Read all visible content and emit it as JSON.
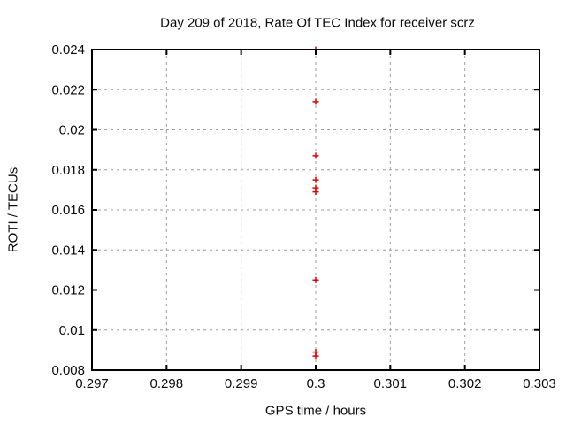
{
  "chart_data": {
    "type": "scatter",
    "title": "Day 209 of 2018, Rate Of TEC Index for receiver scrz",
    "xlabel": "GPS time / hours",
    "ylabel": "ROTI / TECUs",
    "xlim": [
      0.297,
      0.303
    ],
    "ylim": [
      0.008,
      0.024
    ],
    "xticks": [
      0.297,
      0.298,
      0.299,
      0.3,
      0.301,
      0.302,
      0.303
    ],
    "xtick_labels": [
      "0.297",
      "0.298",
      "0.299",
      "0.3",
      "0.301",
      "0.302",
      "0.303"
    ],
    "yticks": [
      0.008,
      0.01,
      0.012,
      0.014,
      0.016,
      0.018,
      0.02,
      0.022,
      0.024
    ],
    "ytick_labels": [
      "0.008",
      "0.01",
      "0.012",
      "0.014",
      "0.016",
      "0.018",
      "0.02",
      "0.022",
      "0.024"
    ],
    "grid": true,
    "legend_position": "none",
    "marker": {
      "shape": "plus",
      "color": "#e00000",
      "size": 7,
      "stroke_width": 1.5
    },
    "colors": {
      "axis": "#000000",
      "grid": "#9e9e9e",
      "background": "#ffffff"
    },
    "series": [
      {
        "name": "ROTI",
        "x": [
          0.3,
          0.3,
          0.3,
          0.3,
          0.3,
          0.3,
          0.3,
          0.3,
          0.3
        ],
        "y": [
          0.024,
          0.0214,
          0.0187,
          0.0175,
          0.0171,
          0.0169,
          0.0125,
          0.0089,
          0.0087
        ]
      }
    ]
  }
}
